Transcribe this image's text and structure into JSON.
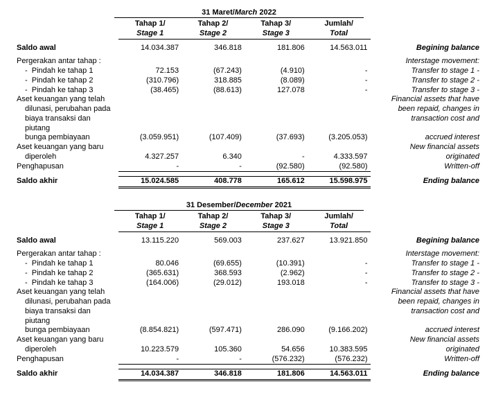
{
  "tables": [
    {
      "period_id": "Maret",
      "period_it": "March",
      "period_year": "2022",
      "col_headers": [
        {
          "id": "Tahap 1/",
          "it": "Stage 1"
        },
        {
          "id": "Tahap 2/",
          "it": "Stage 2"
        },
        {
          "id": "Tahap 3/",
          "it": "Stage 3"
        },
        {
          "id": "Jumlah/",
          "it": "Total"
        }
      ],
      "rows": [
        {
          "type": "bold",
          "label": "Saldo awal",
          "vals": [
            "14.034.387",
            "346.818",
            "181.806",
            "14.563.011"
          ],
          "eng": "Begining balance",
          "eng_bold": true
        },
        {
          "type": "spacer"
        },
        {
          "type": "plain",
          "label": "Pergerakan antar tahap :",
          "vals": [
            "",
            "",
            "",
            ""
          ],
          "eng": "Interstage movement:"
        },
        {
          "type": "dash",
          "label": "Pindah ke tahap 1",
          "vals": [
            "72.153",
            "(67.243)",
            "(4.910)",
            "-"
          ],
          "eng": "Transfer to stage 1 -"
        },
        {
          "type": "dash",
          "label": "Pindah ke tahap 2",
          "vals": [
            "(310.796)",
            "318.885",
            "(8.089)",
            "-"
          ],
          "eng": "Transfer to stage 2 -"
        },
        {
          "type": "dash",
          "label": "Pindah ke tahap 3",
          "vals": [
            "(38.465)",
            "(88.613)",
            "127.078",
            "-"
          ],
          "eng": "Transfer to stage 3 -"
        },
        {
          "type": "multi",
          "labels": [
            "Aset keuangan yang telah",
            "dilunasi, perubahan pada",
            "biaya transaksi dan piutang",
            "bunga pembiayaan"
          ],
          "vals": [
            "(3.059.951)",
            "(107.409)",
            "(37.693)",
            "(3.205.053)"
          ],
          "engs": [
            "Financial assets  that have",
            "been repaid, changes in",
            "transaction cost and",
            "accrued interest"
          ]
        },
        {
          "type": "multi",
          "labels": [
            "Aset keuangan yang baru",
            "diperoleh"
          ],
          "vals": [
            "4.327.257",
            "6.340",
            "-",
            "4.333.597"
          ],
          "engs": [
            "New financial assets",
            "originated"
          ]
        },
        {
          "type": "plain",
          "label": "Penghapusan",
          "vals": [
            "-",
            "-",
            "(92.580)",
            "(92.580)"
          ],
          "eng": "Written-off",
          "underline": true
        },
        {
          "type": "spacer"
        },
        {
          "type": "total",
          "label": "Saldo akhir",
          "vals": [
            "15.024.585",
            "408.778",
            "165.612",
            "15.598.975"
          ],
          "eng": "Ending balance"
        }
      ]
    },
    {
      "period_id": "Desember",
      "period_it": "December",
      "period_year": "2021",
      "col_headers": [
        {
          "id": "Tahap 1/",
          "it": "Stage 1"
        },
        {
          "id": "Tahap 2/",
          "it": "Stage 2"
        },
        {
          "id": "Tahap 3/",
          "it": "Stage 3"
        },
        {
          "id": "Jumlah/",
          "it": "Total"
        }
      ],
      "rows": [
        {
          "type": "bold",
          "label": "Saldo awal",
          "vals": [
            "13.115.220",
            "569.003",
            "237.627",
            "13.921.850"
          ],
          "eng": "Begining balance",
          "eng_bold": true
        },
        {
          "type": "spacer"
        },
        {
          "type": "plain",
          "label": "Pergerakan antar tahap :",
          "vals": [
            "",
            "",
            "",
            ""
          ],
          "eng": "Interstage movement:"
        },
        {
          "type": "dash",
          "label": "Pindah ke tahap 1",
          "vals": [
            "80.046",
            "(69.655)",
            "(10.391)",
            "-"
          ],
          "eng": "Transfer to stage 1 -"
        },
        {
          "type": "dash",
          "label": "Pindah ke tahap 2",
          "vals": [
            "(365.631)",
            "368.593",
            "(2.962)",
            "-"
          ],
          "eng": "Transfer to stage 2 -"
        },
        {
          "type": "dash",
          "label": "Pindah ke tahap 3",
          "vals": [
            "(164.006)",
            "(29.012)",
            "193.018",
            "-"
          ],
          "eng": "Transfer to stage 3 -"
        },
        {
          "type": "multi",
          "labels": [
            "Aset keuangan yang telah",
            "dilunasi, perubahan pada",
            "biaya transaksi dan piutang",
            "bunga pembiayaan"
          ],
          "vals": [
            "(8.854.821)",
            "(597.471)",
            "286.090",
            "(9.166.202)"
          ],
          "engs": [
            "Financial assets  that have",
            "been repaid, changes in",
            "transaction cost and",
            "accrued interest"
          ]
        },
        {
          "type": "multi",
          "labels": [
            "Aset keuangan yang baru",
            "diperoleh"
          ],
          "vals": [
            "10.223.579",
            "105.360",
            "54.656",
            "10.383.595"
          ],
          "engs": [
            "New financial assets",
            "originated"
          ]
        },
        {
          "type": "plain",
          "label": "Penghapusan",
          "vals": [
            "-",
            "-",
            "(576.232)",
            "(576.232)"
          ],
          "eng": "Written-off",
          "underline": true
        },
        {
          "type": "spacer"
        },
        {
          "type": "total",
          "label": "Saldo akhir",
          "vals": [
            "14.034.387",
            "346.818",
            "181.806",
            "14.563.011"
          ],
          "eng": "Ending balance"
        }
      ]
    }
  ]
}
